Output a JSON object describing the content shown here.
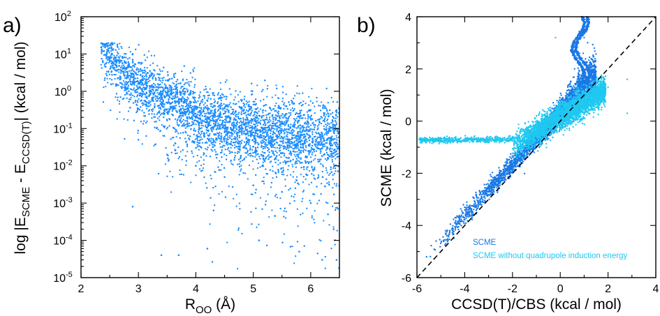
{
  "chart_data": [
    {
      "type": "scatter",
      "panel_label": "a)",
      "title": "",
      "xlabel": "R",
      "xlabel_sub": "OO",
      "xlabel_unit": " (Å)",
      "ylabel_parts": [
        "log |E",
        "SCME",
        " - E",
        "CCSD(T)",
        "|  (kcal / mol)"
      ],
      "xlim": [
        2,
        6.5
      ],
      "ylim": [
        1e-05,
        100
      ],
      "yscale": "log",
      "x_ticks": [
        2,
        3,
        4,
        5,
        6
      ],
      "x_tick_labels": [
        "2",
        "3",
        "4",
        "5",
        "6"
      ],
      "y_tick_exponents": [
        -5,
        -4,
        -3,
        -2,
        -1,
        0,
        1,
        2
      ],
      "y_tick_base": "10",
      "y_tick_exp_labels": [
        "-5",
        "-4",
        "-3",
        "-2",
        "-1",
        "0",
        "1",
        "2"
      ],
      "grid": false,
      "marker_color": "#1a8cff",
      "series": [
        {
          "values_description_hint": "",
          "points": [
            [
              2.35,
              15
            ],
            [
              2.4,
              12
            ],
            [
              2.45,
              10
            ],
            [
              2.5,
              8
            ],
            [
              2.55,
              6
            ],
            [
              2.6,
              5
            ],
            [
              2.7,
              3.5
            ],
            [
              2.8,
              2.5
            ],
            [
              2.9,
              1.8
            ],
            [
              3.0,
              1.2
            ],
            [
              3.2,
              0.8
            ],
            [
              3.4,
              0.5
            ],
            [
              3.6,
              0.35
            ],
            [
              3.8,
              0.25
            ],
            [
              4.0,
              0.2
            ],
            [
              4.2,
              0.15
            ],
            [
              4.5,
              0.12
            ],
            [
              4.8,
              0.09
            ],
            [
              5.0,
              0.08
            ],
            [
              5.3,
              0.06
            ],
            [
              5.6,
              0.05
            ],
            [
              5.9,
              0.04
            ],
            [
              6.2,
              0.03
            ],
            [
              6.45,
              0.025
            ],
            [
              3.0,
              0.05
            ],
            [
              3.5,
              0.02
            ],
            [
              4.0,
              0.01
            ],
            [
              4.5,
              0.005
            ],
            [
              5.0,
              0.003
            ],
            [
              5.5,
              0.002
            ],
            [
              6.0,
              0.001
            ],
            [
              6.3,
              0.0005
            ],
            [
              6.4,
              0.0002
            ],
            [
              6.45,
              3e-05
            ],
            [
              2.9,
              0.0008
            ],
            [
              3.4,
              4e-05
            ],
            [
              3.7,
              4e-05
            ],
            [
              4.2,
              6e-05
            ],
            [
              5.1,
              0.0001
            ],
            [
              5.8,
              5e-05
            ],
            [
              6.2,
              3e-05
            ]
          ]
        }
      ]
    },
    {
      "type": "scatter",
      "panel_label": "b)",
      "title": "",
      "xlabel": "CCSD(T)/CBS (kcal / mol)",
      "ylabel": "SCME (kcal / mol)",
      "xlim": [
        -6,
        4
      ],
      "ylim": [
        -6,
        4
      ],
      "x_ticks": [
        -6,
        -4,
        -2,
        0,
        2,
        4
      ],
      "x_tick_labels": [
        "-6",
        "-4",
        "-2",
        "0",
        "2",
        "4"
      ],
      "y_ticks": [
        -6,
        -4,
        -2,
        0,
        2,
        4
      ],
      "y_tick_labels": [
        "-6",
        "-4",
        "-2",
        "0",
        "2",
        "4"
      ],
      "grid": false,
      "diagonal": "y = x (dashed)",
      "legend_position": "bottom-right",
      "series": [
        {
          "name": "SCME",
          "color": "#1a78e6",
          "points": [
            [
              -5.6,
              -5.2
            ],
            [
              -5.2,
              -4.6
            ],
            [
              -4.8,
              -4.2
            ],
            [
              -4.4,
              -3.7
            ],
            [
              -4.0,
              -3.3
            ],
            [
              -3.5,
              -2.9
            ],
            [
              -3.0,
              -2.5
            ],
            [
              -2.5,
              -2.1
            ],
            [
              -2.0,
              -1.7
            ],
            [
              -1.5,
              -1.2
            ],
            [
              -1.0,
              -0.7
            ],
            [
              -0.5,
              -0.3
            ],
            [
              0.0,
              0.2
            ],
            [
              0.5,
              0.6
            ],
            [
              1.0,
              1.0
            ],
            [
              1.4,
              1.6
            ],
            [
              0.6,
              2.0
            ],
            [
              0.8,
              2.6
            ],
            [
              1.0,
              3.2
            ],
            [
              1.1,
              3.8
            ],
            [
              0.9,
              4.0
            ]
          ]
        },
        {
          "name": "SCME without quadrupole induction energy",
          "color": "#1fc8f0",
          "points": [
            [
              -5.9,
              -0.7
            ],
            [
              -5.0,
              -0.7
            ],
            [
              -4.0,
              -0.7
            ],
            [
              -3.0,
              -0.7
            ],
            [
              -2.0,
              -0.6
            ],
            [
              -1.5,
              -0.5
            ],
            [
              -1.0,
              -0.3
            ],
            [
              -0.5,
              -0.1
            ],
            [
              0.0,
              0.1
            ],
            [
              0.5,
              0.4
            ],
            [
              1.0,
              0.8
            ],
            [
              1.5,
              1.2
            ],
            [
              2.0,
              1.3
            ],
            [
              2.8,
              1.6
            ],
            [
              2.8,
              0.3
            ],
            [
              -0.2,
              3.2
            ]
          ]
        }
      ]
    }
  ]
}
